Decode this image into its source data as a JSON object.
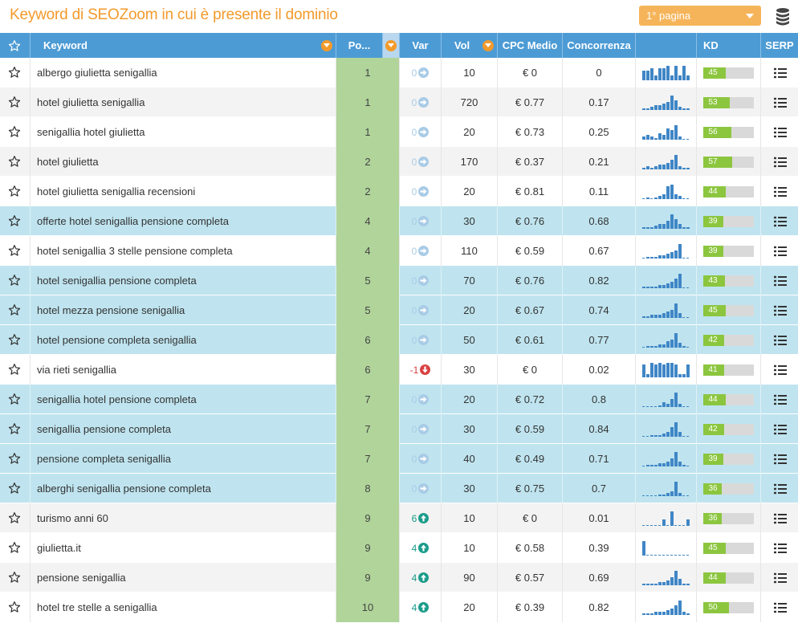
{
  "header": {
    "title": "Keyword di SEOZoom in cui è presente il dominio",
    "page_select": "1° pagina",
    "db_icon": "database-icon"
  },
  "columns": {
    "keyword": "Keyword",
    "position": "Po...",
    "var": "Var",
    "vol": "Vol",
    "cpc": "CPC Medio",
    "competition": "Concorrenza",
    "kd": "KD",
    "serp": "SERP"
  },
  "colors": {
    "accent": "#f39a2b",
    "header_bg": "#4c9bd5",
    "highlight_row": "#bfe4ef",
    "position_bg": "#b0d49a",
    "kd_fill": "#8cc63f",
    "var_up": "#1b9c8a",
    "var_down": "#d94141",
    "var_zero": "#a8cbe6",
    "spark": "#3f86c6"
  },
  "rows": [
    {
      "keyword": "albergo giulietta senigallia",
      "pos": "1",
      "var": "0",
      "dir": "zero",
      "vol": "10",
      "cpc": "€ 0",
      "comp": "0",
      "kd": 45,
      "globe": false,
      "bg": "white",
      "trend": [
        4,
        4,
        5,
        2,
        5,
        5,
        6,
        2,
        6,
        2,
        6,
        2
      ]
    },
    {
      "keyword": "hotel giulietta senigallia",
      "pos": "1",
      "var": "0",
      "dir": "zero",
      "vol": "720",
      "cpc": "€ 0.77",
      "comp": "0.17",
      "kd": 53,
      "globe": false,
      "bg": "grey",
      "trend": [
        1,
        1,
        2,
        3,
        3,
        4,
        5,
        9,
        6,
        2,
        1,
        1
      ]
    },
    {
      "keyword": "senigallia hotel giulietta",
      "pos": "1",
      "var": "0",
      "dir": "zero",
      "vol": "20",
      "cpc": "€ 0.73",
      "comp": "0.25",
      "kd": 56,
      "globe": false,
      "bg": "white",
      "trend": [
        2,
        3,
        2,
        1,
        4,
        3,
        7,
        6,
        9,
        2,
        0,
        0
      ]
    },
    {
      "keyword": "hotel giulietta",
      "pos": "2",
      "var": "0",
      "dir": "zero",
      "vol": "170",
      "cpc": "€ 0.37",
      "comp": "0.21",
      "kd": 57,
      "globe": false,
      "bg": "grey",
      "trend": [
        1,
        2,
        1,
        2,
        3,
        3,
        4,
        6,
        9,
        2,
        1,
        1
      ]
    },
    {
      "keyword": "hotel giulietta senigallia recensioni",
      "pos": "2",
      "var": "0",
      "dir": "zero",
      "vol": "20",
      "cpc": "€ 0.81",
      "comp": "0.11",
      "kd": 44,
      "globe": false,
      "bg": "white",
      "trend": [
        0,
        1,
        0,
        1,
        2,
        3,
        8,
        9,
        3,
        2,
        0,
        0
      ]
    },
    {
      "keyword": "offerte hotel senigallia pensione completa",
      "pos": "4",
      "var": "0",
      "dir": "zero",
      "vol": "30",
      "cpc": "€ 0.76",
      "comp": "0.68",
      "kd": 39,
      "globe": true,
      "bg": "cyan",
      "trend": [
        1,
        1,
        1,
        2,
        3,
        3,
        5,
        9,
        6,
        3,
        1,
        1
      ]
    },
    {
      "keyword": "hotel senigallia 3 stelle pensione completa",
      "pos": "4",
      "var": "0",
      "dir": "zero",
      "vol": "110",
      "cpc": "€ 0.59",
      "comp": "0.67",
      "kd": 39,
      "globe": false,
      "bg": "white",
      "trend": [
        0,
        1,
        1,
        1,
        2,
        2,
        3,
        4,
        5,
        9,
        0,
        0
      ]
    },
    {
      "keyword": "hotel senigallia pensione completa",
      "pos": "5",
      "var": "0",
      "dir": "zero",
      "vol": "70",
      "cpc": "€ 0.76",
      "comp": "0.82",
      "kd": 43,
      "globe": true,
      "bg": "cyan",
      "trend": [
        1,
        1,
        1,
        1,
        2,
        2,
        3,
        4,
        6,
        9,
        0,
        0
      ]
    },
    {
      "keyword": "hotel mezza pensione senigallia",
      "pos": "5",
      "var": "0",
      "dir": "zero",
      "vol": "20",
      "cpc": "€ 0.67",
      "comp": "0.74",
      "kd": 45,
      "globe": true,
      "bg": "cyan",
      "trend": [
        1,
        1,
        2,
        2,
        2,
        3,
        4,
        5,
        9,
        3,
        0,
        0
      ]
    },
    {
      "keyword": "hotel pensione completa senigallia",
      "pos": "6",
      "var": "0",
      "dir": "zero",
      "vol": "50",
      "cpc": "€ 0.61",
      "comp": "0.77",
      "kd": 42,
      "globe": true,
      "bg": "cyan",
      "trend": [
        0,
        1,
        1,
        1,
        2,
        2,
        4,
        5,
        9,
        3,
        1,
        0
      ]
    },
    {
      "keyword": "via rieti senigallia",
      "pos": "6",
      "var": "-1",
      "dir": "down",
      "vol": "30",
      "cpc": "€ 0",
      "comp": "0.02",
      "kd": 41,
      "globe": false,
      "bg": "white",
      "trend": [
        8,
        2,
        9,
        8,
        9,
        8,
        9,
        9,
        8,
        2,
        2,
        8
      ]
    },
    {
      "keyword": "senigallia hotel pensione completa",
      "pos": "7",
      "var": "0",
      "dir": "zero",
      "vol": "20",
      "cpc": "€ 0.72",
      "comp": "0.8",
      "kd": 44,
      "globe": true,
      "bg": "cyan",
      "trend": [
        0,
        0,
        0,
        0,
        1,
        3,
        2,
        5,
        9,
        2,
        0,
        0
      ]
    },
    {
      "keyword": "senigallia pensione completa",
      "pos": "7",
      "var": "0",
      "dir": "zero",
      "vol": "30",
      "cpc": "€ 0.59",
      "comp": "0.84",
      "kd": 42,
      "globe": true,
      "bg": "cyan",
      "trend": [
        0,
        0,
        1,
        1,
        1,
        2,
        3,
        6,
        9,
        3,
        0,
        0
      ]
    },
    {
      "keyword": "pensione completa senigallia",
      "pos": "7",
      "var": "0",
      "dir": "zero",
      "vol": "40",
      "cpc": "€ 0.49",
      "comp": "0.71",
      "kd": 39,
      "globe": true,
      "bg": "cyan",
      "trend": [
        0,
        1,
        1,
        1,
        2,
        2,
        3,
        5,
        9,
        3,
        1,
        0
      ]
    },
    {
      "keyword": "alberghi senigallia pensione completa",
      "pos": "8",
      "var": "0",
      "dir": "zero",
      "vol": "30",
      "cpc": "€ 0.75",
      "comp": "0.7",
      "kd": 36,
      "globe": true,
      "bg": "cyan",
      "trend": [
        0,
        0,
        0,
        0,
        1,
        1,
        2,
        3,
        9,
        2,
        0,
        0
      ]
    },
    {
      "keyword": "turismo anni 60",
      "pos": "9",
      "var": "6",
      "dir": "up",
      "vol": "10",
      "cpc": "€ 0",
      "comp": "0.01",
      "kd": 36,
      "globe": false,
      "bg": "grey",
      "trend": [
        0,
        0,
        0,
        0,
        0,
        4,
        0,
        9,
        0,
        0,
        0,
        4
      ]
    },
    {
      "keyword": "giulietta.it",
      "pos": "9",
      "var": "4",
      "dir": "up",
      "vol": "10",
      "cpc": "€ 0.58",
      "comp": "0.39",
      "kd": 45,
      "globe": false,
      "bg": "white",
      "trend": [
        9,
        0,
        0,
        0,
        0,
        0,
        0,
        0,
        0,
        0,
        0,
        0
      ]
    },
    {
      "keyword": "pensione senigallia",
      "pos": "9",
      "var": "4",
      "dir": "up",
      "vol": "90",
      "cpc": "€ 0.57",
      "comp": "0.69",
      "kd": 44,
      "globe": false,
      "bg": "grey",
      "trend": [
        1,
        1,
        1,
        1,
        2,
        2,
        3,
        5,
        9,
        4,
        1,
        1
      ]
    },
    {
      "keyword": "hotel tre stelle a senigallia",
      "pos": "10",
      "var": "4",
      "dir": "up",
      "vol": "20",
      "cpc": "€ 0.39",
      "comp": "0.82",
      "kd": 50,
      "globe": false,
      "bg": "white",
      "trend": [
        1,
        1,
        1,
        2,
        2,
        2,
        3,
        4,
        6,
        9,
        2,
        1
      ]
    }
  ]
}
